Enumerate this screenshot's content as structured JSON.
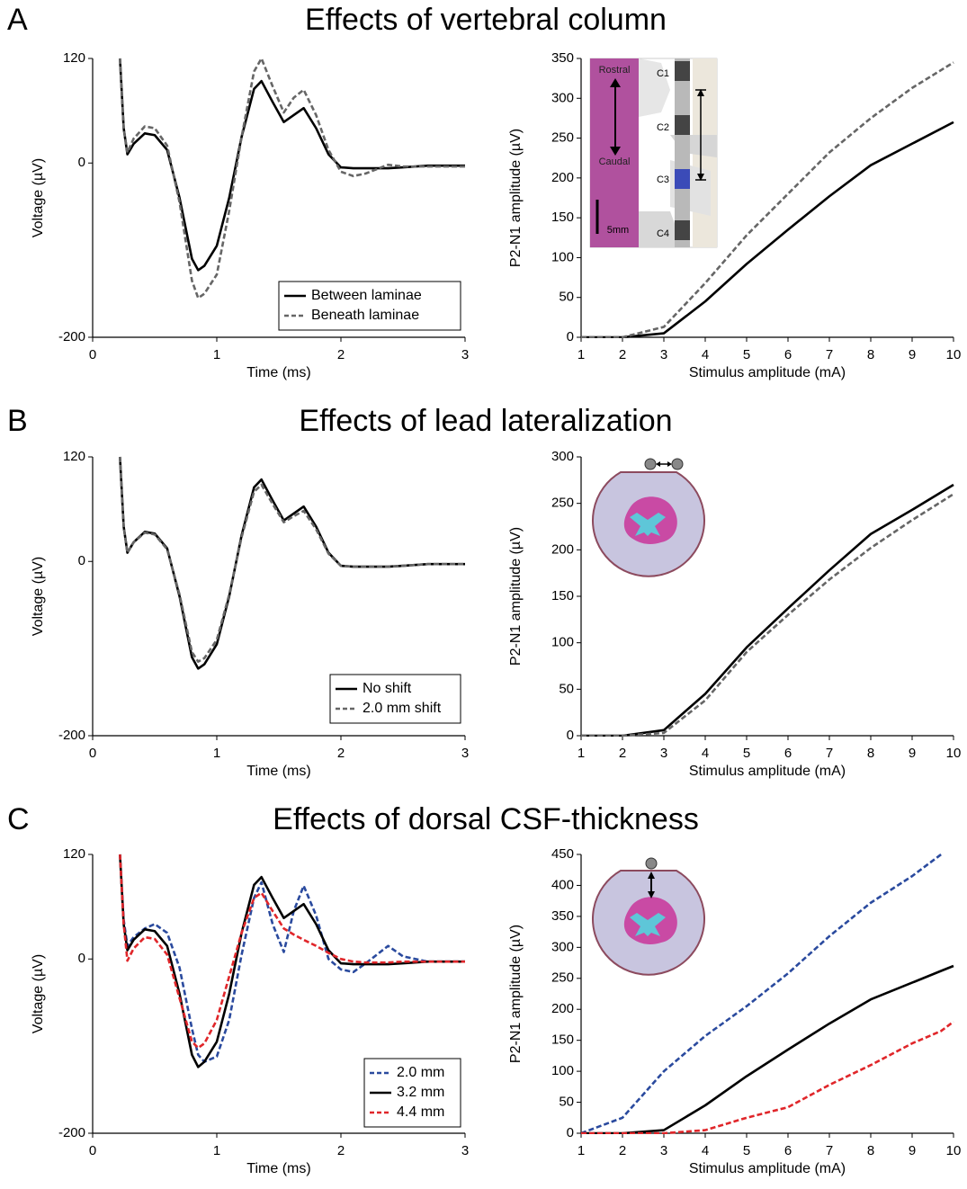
{
  "sections": [
    {
      "letter": "A",
      "title": "Effects of vertebral column"
    },
    {
      "letter": "B",
      "title": "Effects of lead lateralization"
    },
    {
      "letter": "C",
      "title": "Effects of dorsal CSF-thickness"
    }
  ],
  "chart_data": [
    {
      "type": "line",
      "xlabel": "Time (ms)",
      "ylabel": "Voltage (µV)",
      "xlim": [
        0,
        3
      ],
      "ylim": [
        -200,
        120
      ],
      "xticks": [
        0,
        1,
        2,
        3
      ],
      "yticks": [
        -200,
        0,
        120
      ],
      "legend": "lower right",
      "x": [
        0.22,
        0.25,
        0.28,
        0.33,
        0.42,
        0.5,
        0.6,
        0.7,
        0.8,
        0.85,
        0.9,
        1.0,
        1.1,
        1.2,
        1.3,
        1.36,
        1.45,
        1.54,
        1.62,
        1.7,
        1.8,
        1.9,
        2.0,
        2.1,
        2.2,
        2.38,
        2.5,
        2.7,
        3.0
      ],
      "series": [
        {
          "name": "Between laminae",
          "color": "#000000",
          "dashed": false,
          "values": [
            120,
            40,
            10,
            22,
            34,
            32,
            15,
            -40,
            -110,
            -123,
            -118,
            -95,
            -40,
            30,
            85,
            94,
            70,
            47,
            55,
            63,
            40,
            10,
            -5,
            -6,
            -6,
            -6,
            -5,
            -3,
            -3
          ]
        },
        {
          "name": "Beneath laminae",
          "color": "#666666",
          "dashed": true,
          "values": [
            120,
            40,
            12,
            28,
            42,
            40,
            20,
            -45,
            -135,
            -155,
            -150,
            -128,
            -55,
            30,
            105,
            120,
            88,
            58,
            75,
            84,
            55,
            15,
            -10,
            -15,
            -12,
            -2,
            -4,
            -4,
            -4
          ]
        }
      ]
    },
    {
      "type": "line",
      "xlabel": "Stimulus amplitude (mA)",
      "ylabel": "P2-N1 amplitude (µV)",
      "xlim": [
        1,
        10
      ],
      "ylim": [
        0,
        350
      ],
      "xticks": [
        1,
        2,
        3,
        4,
        5,
        6,
        7,
        8,
        9,
        10
      ],
      "yticks": [
        0,
        50,
        100,
        150,
        200,
        250,
        300,
        350
      ],
      "x": [
        1,
        2,
        3,
        4,
        5,
        6,
        7,
        8,
        9,
        10
      ],
      "annotations": [
        "Rostral",
        "Caudal",
        "C1",
        "C2",
        "C3",
        "C4",
        "5mm"
      ],
      "series": [
        {
          "name": "Between laminae",
          "color": "#000000",
          "dashed": false,
          "values": [
            0,
            0,
            5,
            45,
            92,
            135,
            177,
            216,
            243,
            270
          ]
        },
        {
          "name": "Beneath laminae",
          "color": "#666666",
          "dashed": true,
          "values": [
            0,
            0,
            13,
            68,
            128,
            180,
            232,
            275,
            313,
            345
          ]
        }
      ]
    },
    {
      "type": "line",
      "xlabel": "Time (ms)",
      "ylabel": "Voltage (µV)",
      "xlim": [
        0,
        3
      ],
      "ylim": [
        -200,
        120
      ],
      "xticks": [
        0,
        1,
        2,
        3
      ],
      "yticks": [
        -200,
        0,
        120
      ],
      "legend": "lower right",
      "x": [
        0.22,
        0.25,
        0.28,
        0.33,
        0.42,
        0.5,
        0.6,
        0.7,
        0.8,
        0.85,
        0.9,
        1.0,
        1.1,
        1.2,
        1.3,
        1.36,
        1.45,
        1.54,
        1.62,
        1.7,
        1.8,
        1.9,
        2.0,
        2.1,
        2.2,
        2.38,
        2.5,
        2.7,
        3.0
      ],
      "series": [
        {
          "name": "No shift",
          "color": "#000000",
          "dashed": false,
          "values": [
            120,
            40,
            10,
            22,
            34,
            32,
            15,
            -40,
            -110,
            -123,
            -118,
            -95,
            -40,
            30,
            85,
            94,
            70,
            47,
            55,
            63,
            40,
            10,
            -5,
            -6,
            -6,
            -6,
            -5,
            -3,
            -3
          ]
        },
        {
          "name": "2.0 mm shift",
          "color": "#666666",
          "dashed": true,
          "values": [
            120,
            40,
            10,
            22,
            33,
            31,
            14,
            -38,
            -104,
            -115,
            -111,
            -90,
            -38,
            28,
            80,
            88,
            66,
            45,
            52,
            58,
            37,
            9,
            -5,
            -6,
            -6,
            -6,
            -5,
            -3,
            -3
          ]
        }
      ]
    },
    {
      "type": "line",
      "xlabel": "Stimulus amplitude (mA)",
      "ylabel": "P2-N1 amplitude (µV)",
      "xlim": [
        1,
        10
      ],
      "ylim": [
        0,
        300
      ],
      "xticks": [
        1,
        2,
        3,
        4,
        5,
        6,
        7,
        8,
        9,
        10
      ],
      "yticks": [
        0,
        50,
        100,
        150,
        200,
        250,
        300
      ],
      "x": [
        1,
        2,
        3,
        4,
        5,
        6,
        7,
        8,
        9,
        10
      ],
      "series": [
        {
          "name": "No shift",
          "color": "#000000",
          "dashed": false,
          "values": [
            0,
            0,
            6,
            45,
            95,
            137,
            178,
            217,
            243,
            270
          ]
        },
        {
          "name": "2.0 mm shift",
          "color": "#666666",
          "dashed": true,
          "values": [
            0,
            0,
            3,
            38,
            90,
            130,
            168,
            202,
            232,
            260
          ]
        }
      ]
    },
    {
      "type": "line",
      "xlabel": "Time (ms)",
      "ylabel": "Voltage (µV)",
      "xlim": [
        0,
        3
      ],
      "ylim": [
        -200,
        120
      ],
      "xticks": [
        0,
        1,
        2,
        3
      ],
      "yticks": [
        -200,
        0,
        120
      ],
      "legend": "lower right",
      "x": [
        0.22,
        0.25,
        0.28,
        0.33,
        0.42,
        0.5,
        0.6,
        0.7,
        0.8,
        0.85,
        0.9,
        1.0,
        1.1,
        1.2,
        1.3,
        1.36,
        1.45,
        1.54,
        1.62,
        1.7,
        1.8,
        1.9,
        2.0,
        2.1,
        2.2,
        2.38,
        2.5,
        2.7,
        3.0
      ],
      "series": [
        {
          "name": "2.0 mm",
          "color": "#2a4a9e",
          "dashed": true,
          "values": [
            120,
            45,
            15,
            25,
            35,
            40,
            30,
            -10,
            -80,
            -110,
            -118,
            -112,
            -70,
            5,
            70,
            88,
            40,
            8,
            55,
            84,
            50,
            0,
            -12,
            -15,
            -5,
            15,
            3,
            -3,
            -3
          ]
        },
        {
          "name": "3.2 mm",
          "color": "#000000",
          "dashed": false,
          "values": [
            120,
            40,
            10,
            22,
            34,
            32,
            15,
            -40,
            -110,
            -124,
            -118,
            -95,
            -40,
            30,
            85,
            94,
            70,
            47,
            55,
            63,
            40,
            10,
            -5,
            -6,
            -6,
            -6,
            -5,
            -3,
            -3
          ]
        },
        {
          "name": "4.4 mm",
          "color": "#e0262a",
          "dashed": true,
          "values": [
            120,
            40,
            -2,
            12,
            25,
            23,
            5,
            -45,
            -95,
            -102,
            -97,
            -70,
            -20,
            30,
            70,
            76,
            55,
            35,
            28,
            22,
            15,
            7,
            0,
            -3,
            -4,
            -4,
            -3,
            -3,
            -3
          ]
        }
      ]
    },
    {
      "type": "line",
      "xlabel": "Stimulus amplitude (mA)",
      "ylabel": "P2-N1 amplitude (µV)",
      "xlim": [
        1,
        10
      ],
      "ylim": [
        0,
        450
      ],
      "xticks": [
        1,
        2,
        3,
        4,
        5,
        6,
        7,
        8,
        9,
        10
      ],
      "yticks": [
        0,
        50,
        100,
        150,
        200,
        250,
        300,
        350,
        400,
        450
      ],
      "x": [
        1,
        2,
        3,
        4,
        5,
        6,
        7,
        8,
        9,
        9.7,
        10
      ],
      "series": [
        {
          "name": "2.0 mm",
          "color": "#2a4a9e",
          "dashed": true,
          "values": [
            0,
            25,
            100,
            157,
            205,
            258,
            318,
            372,
            415,
            450,
            null
          ]
        },
        {
          "name": "3.2 mm",
          "color": "#000000",
          "dashed": false,
          "values": [
            0,
            0,
            5,
            45,
            92,
            135,
            177,
            216,
            243,
            262,
            270
          ]
        },
        {
          "name": "4.4 mm",
          "color": "#e0262a",
          "dashed": true,
          "values": [
            0,
            0,
            0,
            5,
            25,
            42,
            78,
            110,
            145,
            165,
            180
          ]
        }
      ]
    }
  ]
}
